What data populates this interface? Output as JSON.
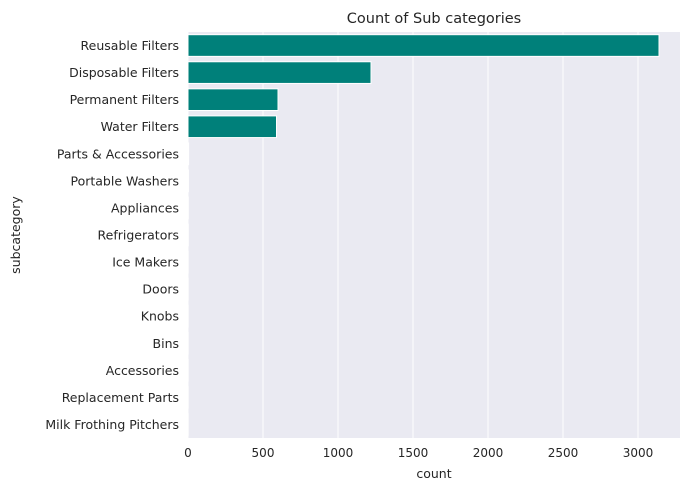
{
  "chart_data": {
    "type": "bar",
    "orientation": "horizontal",
    "title": "Count of Sub categories",
    "xlabel": "count",
    "ylabel": "subcategory",
    "categories": [
      "Reusable Filters",
      "Disposable Filters",
      "Permanent Filters",
      "Water Filters",
      "Parts & Accessories",
      "Portable Washers",
      "Appliances",
      "Refrigerators",
      "Ice Makers",
      "Doors",
      "Knobs",
      "Bins",
      "Accessories",
      "Replacement Parts",
      "Milk Frothing Pitchers"
    ],
    "values": [
      3140,
      1220,
      600,
      590,
      4,
      3,
      2,
      2,
      1,
      1,
      1,
      1,
      1,
      1,
      1
    ],
    "xlim": [
      0,
      3280
    ],
    "xticks": [
      0,
      500,
      1000,
      1500,
      2000,
      2500,
      3000
    ],
    "grid": true,
    "bar_color": "#00807a",
    "background_color": "#eaeaf2",
    "grid_color": "#ffffff"
  }
}
